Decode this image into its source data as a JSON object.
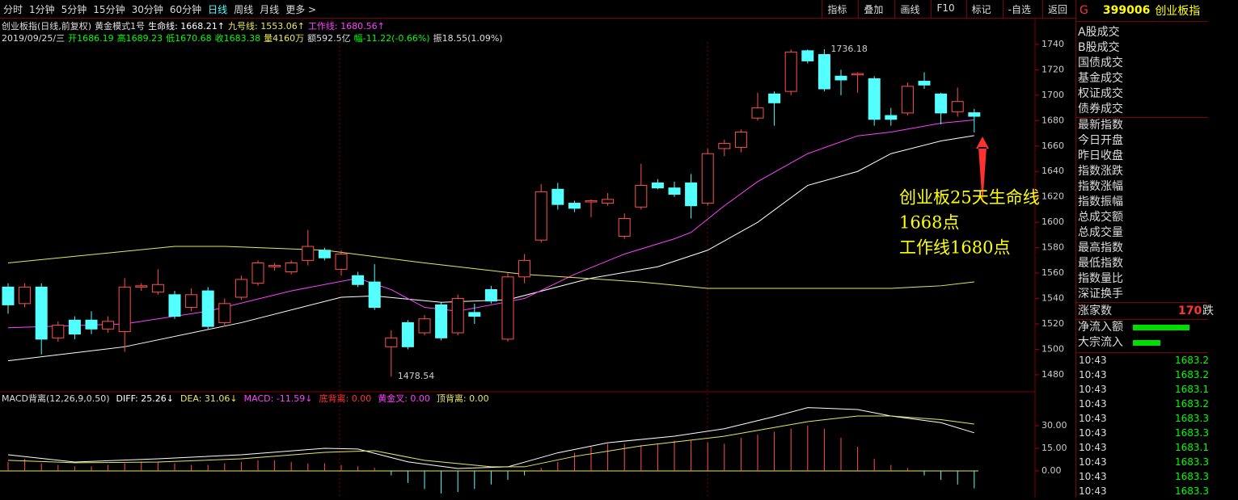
{
  "toolbar": {
    "left": [
      "分时",
      "1分钟",
      "5分钟",
      "15分钟",
      "30分钟",
      "60分钟",
      "日线",
      "周线",
      "月线",
      "更多 >"
    ],
    "right": [
      "指标",
      "叠加",
      "画线",
      "F10",
      "标记",
      "-自选",
      "返回"
    ]
  },
  "header": {
    "name": "创业板指(日线,前复权)",
    "mode": "黄金模式1号",
    "life": "生命线: 1668.21↑",
    "nine": "九号线: 1553.06↑",
    "work": "工作线: 1680.56↑",
    "date": "2019/09/25/三",
    "open": "开1686.19",
    "high": "高1689.23",
    "low": "低1670.68",
    "close": "收1683.38",
    "volume": "量4160万",
    "amount": "额592.5亿",
    "change": "幅-11.22(-0.66%)",
    "amplitude": "振18.55(1.09%)"
  },
  "chart_data": [
    {
      "type": "candlestick",
      "up_color": "#ff5050",
      "down_color": "#54ffff",
      "open": [
        1549,
        1536,
        1549,
        1509,
        1523,
        1523,
        1516,
        1514,
        1549,
        1545,
        1543,
        1533,
        1546,
        1521,
        1541,
        1552,
        1565,
        1561,
        1570,
        1578,
        1563,
        1558,
        1553,
        1502,
        1521,
        1513,
        1535,
        1513,
        1529,
        1547,
        1508,
        1557,
        1586,
        1626,
        1615,
        1616,
        1615,
        1589,
        1612,
        1631,
        1627,
        1631,
        1615,
        1658,
        1659,
        1682,
        1701,
        1703,
        1735,
        1732,
        1715,
        1716,
        1713,
        1684,
        1686,
        1711,
        1701,
        1687,
        1686.19
      ],
      "high": [
        1552,
        1552,
        1552,
        1522,
        1526,
        1530,
        1526,
        1556,
        1552,
        1563,
        1546,
        1548,
        1549,
        1540,
        1558,
        1570,
        1568,
        1570,
        1594,
        1580,
        1578,
        1561,
        1567,
        1515,
        1523,
        1527,
        1537,
        1543,
        1536,
        1550,
        1560,
        1575,
        1630,
        1631,
        1617,
        1618,
        1623,
        1607,
        1646,
        1634,
        1632,
        1638,
        1658,
        1665,
        1673,
        1702,
        1703,
        1736,
        1736,
        1736.18,
        1720,
        1718,
        1715,
        1690,
        1710,
        1718,
        1702,
        1706,
        1689.23
      ],
      "low": [
        1528,
        1533,
        1496,
        1506,
        1508,
        1512,
        1513,
        1498,
        1546,
        1543,
        1524,
        1530,
        1516,
        1518,
        1539,
        1550,
        1562,
        1559,
        1566,
        1570,
        1558,
        1549,
        1531,
        1478.54,
        1500,
        1511,
        1507,
        1511,
        1520,
        1536,
        1506,
        1552,
        1584,
        1610,
        1608,
        1604,
        1613,
        1587,
        1610,
        1626,
        1620,
        1603,
        1613,
        1652,
        1655,
        1680,
        1676,
        1700,
        1725,
        1703,
        1700,
        1702,
        1676,
        1676,
        1684,
        1705,
        1677,
        1683,
        1670.68
      ],
      "close": [
        1535,
        1549,
        1508,
        1519,
        1512,
        1516,
        1522,
        1549,
        1550,
        1551,
        1526,
        1543,
        1518,
        1536,
        1555,
        1568,
        1566,
        1568,
        1581,
        1572,
        1575,
        1551,
        1533,
        1509,
        1502,
        1524,
        1509,
        1540,
        1526,
        1538,
        1557,
        1570,
        1624,
        1614,
        1611,
        1617,
        1618,
        1603,
        1629,
        1627,
        1622,
        1613,
        1654,
        1662,
        1671,
        1690,
        1694,
        1734,
        1727,
        1705,
        1712,
        1717,
        1681,
        1681,
        1707,
        1708,
        1686,
        1695,
        1683.38
      ],
      "lines": [
        {
          "name": "生命线",
          "color": "#ffffff",
          "x": [
            0,
            7,
            14,
            20,
            22,
            26,
            30,
            35,
            39,
            42,
            45,
            48,
            51,
            53,
            56,
            58
          ],
          "values": [
            1491,
            1502,
            1521,
            1541,
            1542,
            1537,
            1539,
            1556,
            1565,
            1578,
            1600,
            1629,
            1640,
            1654,
            1664,
            1668.21
          ]
        },
        {
          "name": "工作线",
          "color": "#ff40ff",
          "x": [
            0,
            7,
            12,
            17,
            21,
            23,
            25,
            27,
            31,
            34,
            37,
            40,
            41,
            43,
            45,
            48,
            51,
            53,
            56,
            58
          ],
          "values": [
            1517,
            1520,
            1530,
            1546,
            1556,
            1547,
            1533,
            1530,
            1540,
            1559,
            1575,
            1587,
            1592,
            1613,
            1632,
            1654,
            1668,
            1671,
            1678,
            1680.56
          ]
        },
        {
          "name": "九号线",
          "color": "#e8e860",
          "x": [
            0,
            10,
            13,
            19,
            25,
            31,
            38,
            42,
            53,
            56,
            58
          ],
          "values": [
            1568,
            1581,
            1581,
            1578,
            1568,
            1559,
            1553,
            1548,
            1548,
            1550,
            1553.06
          ]
        }
      ],
      "max_label": 1736.18,
      "min_label": 1478.54,
      "ylim": [
        1466.6,
        1749.5
      ],
      "yticks": [
        1480,
        1500,
        1520,
        1540,
        1560,
        1580,
        1600,
        1620,
        1640,
        1660,
        1680,
        1700,
        1720,
        1740
      ],
      "annotation": [
        "创业板25天生命线",
        "1668点",
        "工作线1680点"
      ]
    },
    {
      "type": "macd",
      "title": "MACD背离(12,26,9,0.50)",
      "legend": [
        "DIFF: 25.26↓",
        "DEA: 31.06↓",
        "MACD: -11.59↓",
        "底背离: 0.00",
        "黄金叉: 0.00",
        "顶背离: 0.00"
      ],
      "bars": [
        6,
        8,
        5,
        4,
        3,
        3,
        4,
        5,
        6,
        6,
        5,
        4,
        4,
        5,
        6,
        7,
        7,
        6,
        5,
        5,
        4,
        3,
        2,
        -3,
        -8,
        -12,
        -15,
        -14,
        -12,
        -9,
        -6,
        -3,
        2,
        6,
        12,
        16,
        18,
        18,
        17,
        18,
        20,
        20,
        19,
        18,
        22,
        24,
        26,
        28,
        30,
        28,
        22,
        16,
        8,
        4,
        2,
        -3,
        -6,
        -9,
        -11.59
      ],
      "series": [
        {
          "name": "DIFF",
          "color": "#ffffff",
          "x": [
            0,
            4,
            9,
            14,
            19,
            21,
            24,
            27,
            30,
            33,
            36,
            40,
            43,
            46,
            48,
            51,
            53,
            56,
            58
          ],
          "values": [
            10.7,
            5.9,
            8,
            10.7,
            15,
            14.5,
            6,
            1.6,
            2.7,
            12,
            18.7,
            23,
            28,
            36,
            42,
            40.7,
            36.4,
            32,
            25.26
          ]
        },
        {
          "name": "DEA",
          "color": "#e8e860",
          "x": [
            0,
            4,
            9,
            14,
            19,
            22,
            25,
            29,
            31,
            34,
            38,
            43,
            48,
            51,
            53,
            56,
            58
          ],
          "values": [
            7,
            5.4,
            5.9,
            8,
            12.3,
            13.4,
            7,
            2.7,
            2.7,
            9.6,
            16.6,
            23,
            32.7,
            36.4,
            36.4,
            34,
            31.06
          ]
        }
      ],
      "ylim": [
        -17.7,
        52.5
      ],
      "yticks": [
        {
          "value": 0,
          "label": "0.00"
        },
        {
          "value": 15,
          "label": "15.00"
        },
        {
          "value": 30,
          "label": "30.00"
        }
      ]
    }
  ],
  "side_panel": {
    "code": "G",
    "symbol": "399006",
    "name": "创业板指",
    "fields": [
      "A股成交",
      "B股成交",
      "国债成交",
      "基金成交",
      "权证成交",
      "债券成交",
      "最新指数",
      "今日开盘",
      "昨日收盘",
      "指数涨跌",
      "指数涨幅",
      "指数振幅",
      "总成交额",
      "总成交量",
      "最高指数",
      "最低指数",
      "指数量比",
      "深证换手"
    ],
    "rise_label": "涨家数",
    "rise_count": "170",
    "fall_label": "跌",
    "flow": [
      "净流入额",
      "大宗流入"
    ],
    "ticks": [
      [
        "10:43",
        "1683.2"
      ],
      [
        "10:43",
        "1683.2"
      ],
      [
        "10:43",
        "1683.1"
      ],
      [
        "10:43",
        "1683.2"
      ],
      [
        "10:43",
        "1683.3"
      ],
      [
        "10:43",
        "1683.3"
      ],
      [
        "10:43",
        "1683.1"
      ],
      [
        "10:43",
        "1683.3"
      ],
      [
        "10:43",
        "1683.3"
      ],
      [
        "10:43",
        "1683.3"
      ]
    ]
  }
}
